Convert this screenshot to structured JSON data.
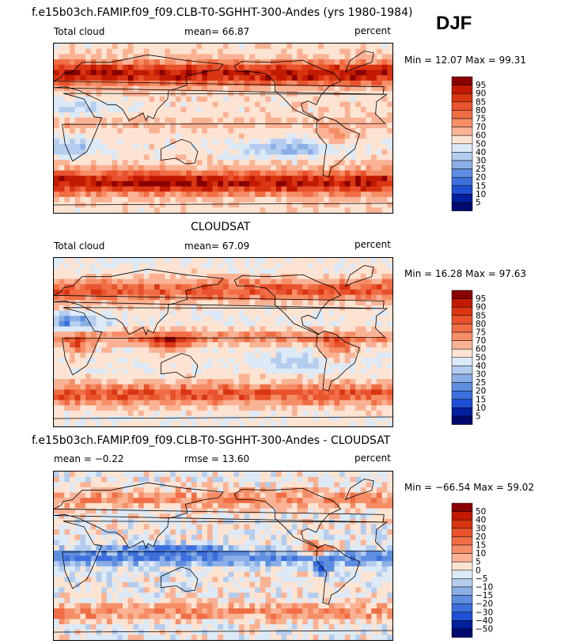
{
  "season": "DJF",
  "panels": [
    {
      "id": "model",
      "header": "f.e15b03ch.FAMIP.f09_f09.CLB-T0-SGHHT-300-Andes (yrs 1980-1984)",
      "left_label": "Total cloud",
      "center_label": "mean=  66.87",
      "right_label": "percent",
      "minmax": "Min =   12.07 Max =   99.31"
    },
    {
      "id": "obs",
      "header": "CLOUDSAT",
      "left_label": "Total cloud",
      "center_label": "mean=  67.09",
      "right_label": "percent",
      "minmax": "Min =   16.28 Max =   97.63"
    },
    {
      "id": "diff",
      "header": "f.e15b03ch.FAMIP.f09_f09.CLB-T0-SGHHT-300-Andes - CLOUDSAT",
      "left_label": "mean =  −0.22",
      "center_label": "rmse =   13.60",
      "right_label": "percent",
      "minmax": "Min = −66.54 Max =   59.02"
    }
  ],
  "chart_data": [
    {
      "type": "heatmap",
      "title": "f.e15b03ch.FAMIP.f09_f09.CLB-T0-SGHHT-300-Andes (yrs 1980-1984)",
      "variable": "Total cloud",
      "units": "percent",
      "mean": 66.87,
      "min": 12.07,
      "max": 99.31,
      "colorbar_levels": [
        "95",
        "90",
        "85",
        "80",
        "75",
        "70",
        "60",
        "50",
        "40",
        "30",
        "25",
        "20",
        "15",
        "10",
        "5"
      ],
      "colors": [
        "#8a0000",
        "#c21a00",
        "#d93512",
        "#e8522c",
        "#f06d45",
        "#f58e66",
        "#fab294",
        "#fde3d2",
        "#dce9f6",
        "#b4cdee",
        "#8aaee6",
        "#5e8ee0",
        "#3c6fdc",
        "#1f4fd4",
        "#001f9e",
        "#000a6e"
      ]
    },
    {
      "type": "heatmap",
      "title": "CLOUDSAT",
      "variable": "Total cloud",
      "units": "percent",
      "mean": 67.09,
      "min": 16.28,
      "max": 97.63,
      "colorbar_levels": [
        "95",
        "90",
        "85",
        "80",
        "75",
        "70",
        "60",
        "50",
        "40",
        "30",
        "25",
        "20",
        "15",
        "10",
        "5"
      ],
      "colors": [
        "#8a0000",
        "#c21a00",
        "#d93512",
        "#e8522c",
        "#f06d45",
        "#f58e66",
        "#fab294",
        "#fde3d2",
        "#dce9f6",
        "#b4cdee",
        "#8aaee6",
        "#5e8ee0",
        "#3c6fdc",
        "#1f4fd4",
        "#001f9e",
        "#000a6e"
      ]
    },
    {
      "type": "heatmap",
      "title": "f.e15b03ch.FAMIP.f09_f09.CLB-T0-SGHHT-300-Andes - CLOUDSAT",
      "units": "percent",
      "mean": -0.22,
      "rmse": 13.6,
      "min": -66.54,
      "max": 59.02,
      "colorbar_levels": [
        "50",
        "40",
        "30",
        "20",
        "15",
        "10",
        "5",
        "0",
        "−5",
        "−10",
        "−15",
        "−20",
        "−30",
        "−40",
        "−50"
      ],
      "colors": [
        "#8a0000",
        "#c21a00",
        "#d93512",
        "#e8522c",
        "#f06d45",
        "#f58e66",
        "#fab294",
        "#fde3d2",
        "#dce9f6",
        "#b4cdee",
        "#8aaee6",
        "#5e8ee0",
        "#3c6fdc",
        "#1f4fd4",
        "#001f9e",
        "#000a6e"
      ]
    }
  ]
}
